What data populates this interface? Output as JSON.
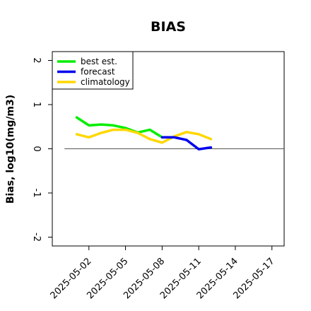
{
  "chart_data": {
    "type": "line",
    "title": "BIAS",
    "xlabel": "",
    "ylabel": "Bias, log10(mg/m3)",
    "ylim": [
      -2.2,
      2.2
    ],
    "yticks": [
      -2,
      -1,
      0,
      1,
      2
    ],
    "ytick_labels": [
      "-2",
      "-1",
      "0",
      "1",
      "2"
    ],
    "xlim": [
      "2025-04-29",
      "2025-05-18"
    ],
    "xticks": [
      "2025-05-02",
      "2025-05-05",
      "2025-05-08",
      "2025-05-11",
      "2025-05-14",
      "2025-05-17"
    ],
    "highlighted_xtick": "2025-05-08",
    "highlight_color": "#228B22",
    "zero_line": true,
    "grid": false,
    "legend_position": "top-left",
    "series": [
      {
        "name": "best est.",
        "color": "#00ee00",
        "x": [
          "2025-05-01",
          "2025-05-02",
          "2025-05-03",
          "2025-05-04",
          "2025-05-05",
          "2025-05-06",
          "2025-05-07",
          "2025-05-08"
        ],
        "values": [
          0.71,
          0.53,
          0.55,
          0.53,
          0.47,
          0.37,
          0.43,
          0.26
        ]
      },
      {
        "name": "forecast",
        "color": "#0000ee",
        "x": [
          "2025-05-08",
          "2025-05-09",
          "2025-05-10",
          "2025-05-11",
          "2025-05-12"
        ],
        "values": [
          0.26,
          0.26,
          0.2,
          -0.01,
          0.03
        ]
      },
      {
        "name": "climatology",
        "color": "#ffd700",
        "x": [
          "2025-05-01",
          "2025-05-02",
          "2025-05-03",
          "2025-05-04",
          "2025-05-05",
          "2025-05-06",
          "2025-05-07",
          "2025-05-08",
          "2025-05-09",
          "2025-05-10",
          "2025-05-11",
          "2025-05-12"
        ],
        "values": [
          0.33,
          0.26,
          0.36,
          0.43,
          0.43,
          0.36,
          0.22,
          0.14,
          0.28,
          0.38,
          0.33,
          0.22
        ]
      }
    ]
  }
}
